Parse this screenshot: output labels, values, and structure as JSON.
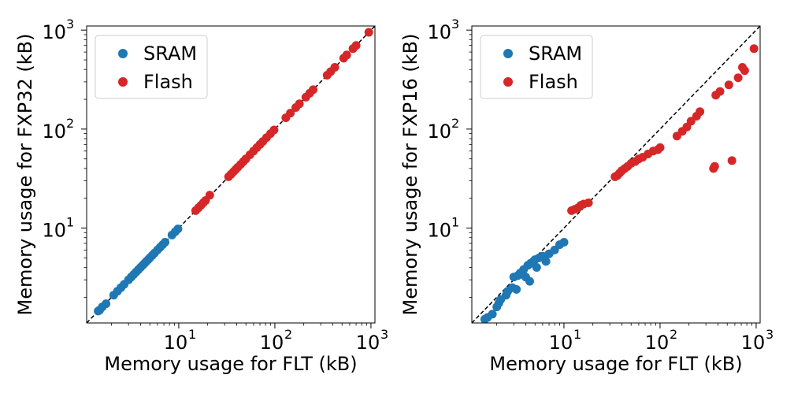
{
  "chart_data": [
    {
      "type": "scatter",
      "xlabel": "Memory usage for FLT (kB)",
      "ylabel": "Memory usage for FXP32 (kB)",
      "xscale": "log",
      "yscale": "log",
      "xlim": [
        1.1,
        1100
      ],
      "ylim": [
        1.1,
        1100
      ],
      "x_ticks": [
        {
          "base": "10",
          "exp": "1",
          "value": 10
        },
        {
          "base": "10",
          "exp": "2",
          "value": 100
        },
        {
          "base": "10",
          "exp": "3",
          "value": 1000
        }
      ],
      "y_ticks": [
        {
          "base": "10",
          "exp": "1",
          "value": 10
        },
        {
          "base": "10",
          "exp": "2",
          "value": 100
        },
        {
          "base": "10",
          "exp": "3",
          "value": 1000
        }
      ],
      "reference_line": "y = x (dashed black)",
      "legend": {
        "placement": "top-left",
        "entries": [
          "SRAM",
          "Flash"
        ]
      },
      "series": [
        {
          "name": "SRAM",
          "color": "#1f77b4",
          "points": [
            [
              1.45,
              1.45
            ],
            [
              1.5,
              1.48
            ],
            [
              1.6,
              1.6
            ],
            [
              1.75,
              1.72
            ],
            [
              2.1,
              2.1
            ],
            [
              2.3,
              2.3
            ],
            [
              2.5,
              2.5
            ],
            [
              2.7,
              2.7
            ],
            [
              3.0,
              3.0
            ],
            [
              3.2,
              3.2
            ],
            [
              3.4,
              3.4
            ],
            [
              3.6,
              3.6
            ],
            [
              3.8,
              3.8
            ],
            [
              4.0,
              4.0
            ],
            [
              4.2,
              4.2
            ],
            [
              4.4,
              4.4
            ],
            [
              4.6,
              4.6
            ],
            [
              4.8,
              4.8
            ],
            [
              5.0,
              5.0
            ],
            [
              5.3,
              5.3
            ],
            [
              5.6,
              5.6
            ],
            [
              6.0,
              6.0
            ],
            [
              6.4,
              6.4
            ],
            [
              6.8,
              6.8
            ],
            [
              7.2,
              7.2
            ],
            [
              8.5,
              8.5
            ],
            [
              9.2,
              9.2
            ],
            [
              9.8,
              9.8
            ]
          ]
        },
        {
          "name": "Flash",
          "color": "#d62728",
          "points": [
            [
              15,
              15
            ],
            [
              16,
              16
            ],
            [
              17,
              17
            ],
            [
              18,
              18
            ],
            [
              19,
              19
            ],
            [
              21,
              21.5
            ],
            [
              33,
              33
            ],
            [
              35,
              35
            ],
            [
              37,
              37
            ],
            [
              39,
              39
            ],
            [
              41,
              41
            ],
            [
              44,
              44
            ],
            [
              47,
              47
            ],
            [
              50,
              50
            ],
            [
              55,
              55
            ],
            [
              60,
              60
            ],
            [
              65,
              65
            ],
            [
              70,
              70
            ],
            [
              75,
              75
            ],
            [
              82,
              82
            ],
            [
              90,
              90
            ],
            [
              98,
              98
            ],
            [
              130,
              130
            ],
            [
              145,
              145
            ],
            [
              165,
              165
            ],
            [
              180,
              180
            ],
            [
              210,
              210
            ],
            [
              230,
              230
            ],
            [
              250,
              250
            ],
            [
              350,
              350
            ],
            [
              380,
              380
            ],
            [
              420,
              420
            ],
            [
              520,
              520
            ],
            [
              560,
              560
            ],
            [
              650,
              650
            ],
            [
              700,
              700
            ],
            [
              950,
              950
            ]
          ]
        }
      ]
    },
    {
      "type": "scatter",
      "xlabel": "Memory usage for FLT (kB)",
      "ylabel": "Memory usage for FXP16 (kB)",
      "xscale": "log",
      "yscale": "log",
      "xlim": [
        1.1,
        1100
      ],
      "ylim": [
        1.1,
        1100
      ],
      "x_ticks": [
        {
          "base": "10",
          "exp": "1",
          "value": 10
        },
        {
          "base": "10",
          "exp": "2",
          "value": 100
        },
        {
          "base": "10",
          "exp": "3",
          "value": 1000
        }
      ],
      "y_ticks": [
        {
          "base": "10",
          "exp": "1",
          "value": 10
        },
        {
          "base": "10",
          "exp": "2",
          "value": 100
        },
        {
          "base": "10",
          "exp": "3",
          "value": 1000
        }
      ],
      "reference_line": "y = x (dashed black)",
      "legend": {
        "placement": "top-left",
        "entries": [
          "SRAM",
          "Flash"
        ]
      },
      "series": [
        {
          "name": "SRAM",
          "color": "#1f77b4",
          "points": [
            [
              1.5,
              1.2
            ],
            [
              1.6,
              1.25
            ],
            [
              1.8,
              1.35
            ],
            [
              2.0,
              1.6
            ],
            [
              2.1,
              1.75
            ],
            [
              2.2,
              1.9
            ],
            [
              2.5,
              2.1
            ],
            [
              2.6,
              2.3
            ],
            [
              2.9,
              2.5
            ],
            [
              3.2,
              2.4
            ],
            [
              3.0,
              3.2
            ],
            [
              3.3,
              3.3
            ],
            [
              3.5,
              3.5
            ],
            [
              3.7,
              3.4
            ],
            [
              3.8,
              3.8
            ],
            [
              4.0,
              3.2
            ],
            [
              4.2,
              4.2
            ],
            [
              4.4,
              2.9
            ],
            [
              4.5,
              4.4
            ],
            [
              4.8,
              4.6
            ],
            [
              5.0,
              4.8
            ],
            [
              5.2,
              4.0
            ],
            [
              5.5,
              5.0
            ],
            [
              6.0,
              5.2
            ],
            [
              6.5,
              4.6
            ],
            [
              7.0,
              5.5
            ],
            [
              8.0,
              6.0
            ],
            [
              9.0,
              6.8
            ],
            [
              10.0,
              7.2
            ]
          ]
        },
        {
          "name": "Flash",
          "color": "#d62728",
          "points": [
            [
              12,
              15
            ],
            [
              13,
              15.5
            ],
            [
              14,
              16
            ],
            [
              15,
              17
            ],
            [
              16,
              17.5
            ],
            [
              18,
              18
            ],
            [
              34,
              33
            ],
            [
              36,
              34
            ],
            [
              38,
              36
            ],
            [
              40,
              38
            ],
            [
              43,
              40
            ],
            [
              46,
              42
            ],
            [
              50,
              45
            ],
            [
              55,
              47
            ],
            [
              60,
              50
            ],
            [
              66,
              52
            ],
            [
              75,
              56
            ],
            [
              85,
              60
            ],
            [
              95,
              62
            ],
            [
              100,
              65
            ],
            [
              150,
              85
            ],
            [
              170,
              95
            ],
            [
              190,
              105
            ],
            [
              210,
              120
            ],
            [
              240,
              135
            ],
            [
              260,
              150
            ],
            [
              360,
              40
            ],
            [
              370,
              42
            ],
            [
              380,
              220
            ],
            [
              420,
              240
            ],
            [
              520,
              280
            ],
            [
              560,
              48
            ],
            [
              650,
              330
            ],
            [
              720,
              420
            ],
            [
              760,
              390
            ],
            [
              950,
              650
            ]
          ]
        }
      ]
    }
  ]
}
